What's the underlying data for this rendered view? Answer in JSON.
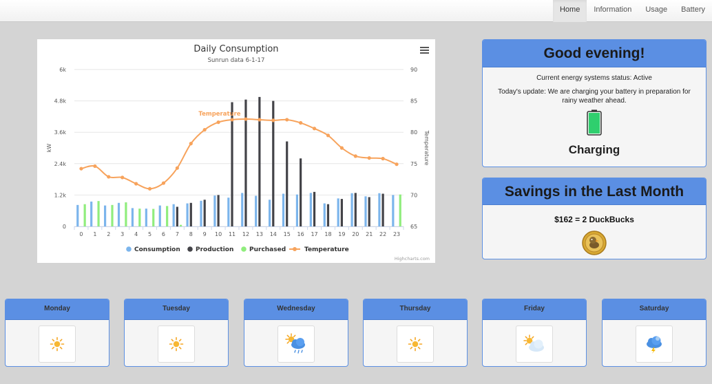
{
  "nav": {
    "items": [
      "Home",
      "Information",
      "Usage",
      "Battery"
    ],
    "active": 0
  },
  "greeting": {
    "title": "Good evening!",
    "status": "Current energy systems status: Active",
    "update": "Today's update: We are charging your battery in preparation for rainy weather ahead.",
    "battery_state": "Charging",
    "battery_icon": "battery-charging-icon"
  },
  "savings": {
    "title": "Savings in the Last Month",
    "amount_text": "$162 = 2 DuckBucks",
    "coin_icon": "duckbuck-coin-icon"
  },
  "forecast": [
    {
      "day": "Monday",
      "icon": "sun-icon"
    },
    {
      "day": "Tuesday",
      "icon": "sun-icon"
    },
    {
      "day": "Wednesday",
      "icon": "sun-rain-cloud-icon"
    },
    {
      "day": "Thursday",
      "icon": "sun-icon"
    },
    {
      "day": "Friday",
      "icon": "partly-cloudy-icon"
    },
    {
      "day": "Saturday",
      "icon": "thunderstorm-icon"
    }
  ],
  "chart_data": {
    "type": "bar",
    "title": "Daily Consumption",
    "subtitle": "Sunrun data 6-1-17",
    "credits": "Highcharts.com",
    "menu_icon": "hamburger-menu-icon",
    "xlabel": "",
    "ylabel": "kW",
    "y2label": "Temperature",
    "categories": [
      "0",
      "1",
      "2",
      "3",
      "4",
      "5",
      "6",
      "7",
      "8",
      "9",
      "10",
      "11",
      "12",
      "13",
      "14",
      "15",
      "16",
      "17",
      "18",
      "19",
      "20",
      "21",
      "22",
      "23"
    ],
    "ylim": [
      0,
      6
    ],
    "yticks": [
      "0",
      "1.2k",
      "2.4k",
      "3.6k",
      "4.8k",
      "6k"
    ],
    "y2lim": [
      65,
      90
    ],
    "y2ticks": [
      "65",
      "70",
      "75",
      "80",
      "85",
      "90"
    ],
    "grid": true,
    "legend_position": "bottom",
    "series": [
      {
        "name": "Consumption",
        "type": "bar",
        "color": "#7cb5ec",
        "values": [
          0.82,
          0.95,
          0.8,
          0.9,
          0.7,
          0.68,
          0.8,
          0.85,
          0.88,
          0.98,
          1.18,
          1.1,
          1.28,
          1.17,
          1.02,
          1.25,
          1.22,
          1.28,
          0.88,
          1.07,
          1.27,
          1.15,
          1.27,
          1.2
        ]
      },
      {
        "name": "Production",
        "type": "bar",
        "color": "#434348",
        "values": [
          0,
          0,
          0,
          0,
          0,
          0,
          0,
          0.75,
          0.9,
          1.02,
          1.2,
          4.75,
          4.85,
          4.95,
          4.8,
          3.25,
          2.6,
          1.32,
          0.85,
          1.05,
          1.28,
          1.12,
          1.25,
          0
        ]
      },
      {
        "name": "Purchased",
        "type": "bar",
        "color": "#90ed7d",
        "values": [
          0.85,
          0.97,
          0.82,
          0.92,
          0.68,
          0.67,
          0.78,
          0.06,
          0,
          0,
          0,
          0,
          0,
          0,
          0,
          0,
          0,
          0,
          0,
          0,
          0,
          0,
          0,
          1.22
        ]
      },
      {
        "name": "Temperature",
        "type": "line",
        "color": "#f7a35c",
        "axis": "right",
        "values": [
          74.2,
          74.6,
          72.9,
          72.8,
          71.8,
          71.0,
          71.9,
          74.3,
          78.2,
          80.4,
          81.6,
          82.0,
          82.1,
          82.0,
          81.9,
          82.0,
          81.5,
          80.6,
          79.5,
          77.5,
          76.2,
          75.9,
          75.8,
          74.9
        ]
      }
    ],
    "annotations": [
      "Temperature"
    ]
  }
}
